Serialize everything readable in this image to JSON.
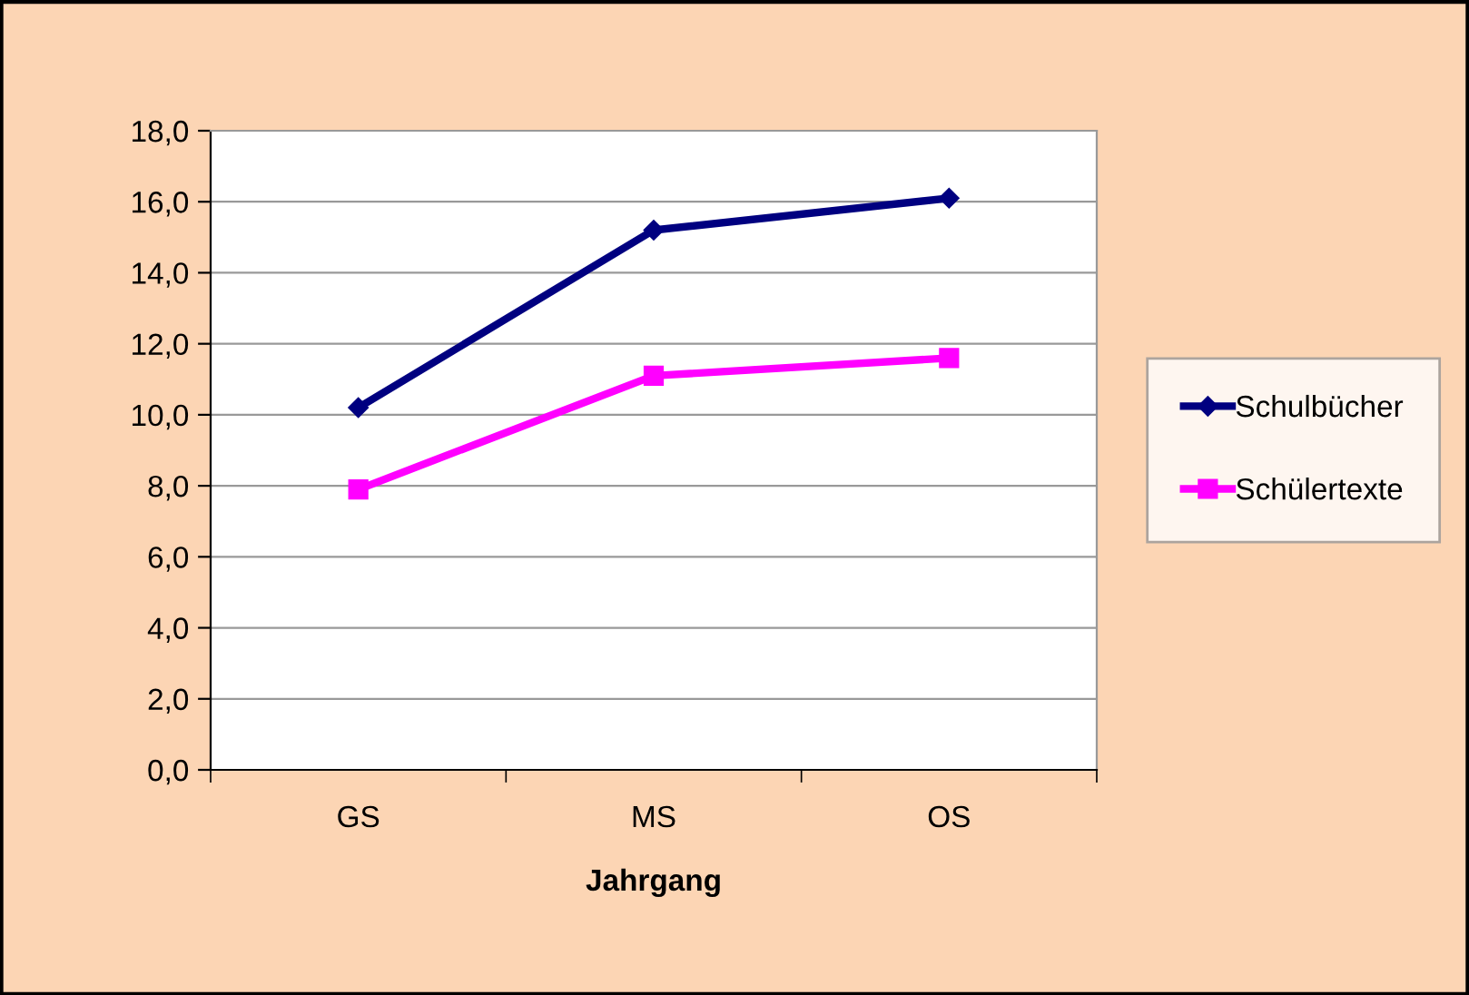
{
  "chart_data": {
    "type": "line",
    "xlabel": "Jahrgang",
    "categories": [
      "GS",
      "MS",
      "OS"
    ],
    "series": [
      {
        "name": "Schulbücher",
        "color": "#000080",
        "values": [
          10.2,
          15.2,
          16.1
        ],
        "marker": "diamond"
      },
      {
        "name": "Schülertexte",
        "color": "#ff00ff",
        "values": [
          7.9,
          11.1,
          11.6
        ],
        "marker": "square"
      }
    ],
    "ylim": [
      0,
      18
    ],
    "yticks": [
      {
        "value": 0,
        "label": "0,0"
      },
      {
        "value": 2,
        "label": "2,0"
      },
      {
        "value": 4,
        "label": "4,0"
      },
      {
        "value": 6,
        "label": "6,0"
      },
      {
        "value": 8,
        "label": "8,0"
      },
      {
        "value": 10,
        "label": "10,0"
      },
      {
        "value": 12,
        "label": "12,0"
      },
      {
        "value": 14,
        "label": "14,0"
      },
      {
        "value": 16,
        "label": "16,0"
      },
      {
        "value": 18,
        "label": "18,0"
      }
    ],
    "grid": "y",
    "legend": "right",
    "line_style": "solid"
  }
}
